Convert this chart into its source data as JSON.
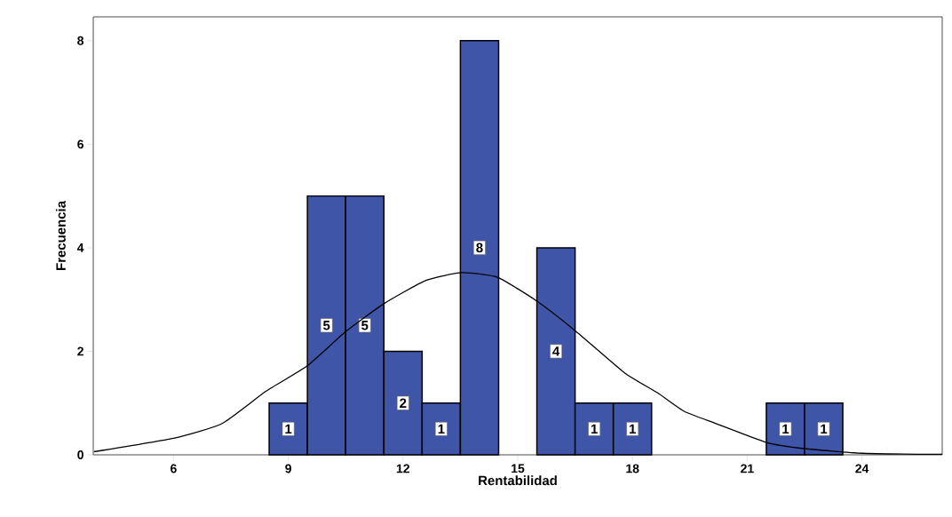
{
  "chart_data": {
    "type": "histogram",
    "xlabel": "Rentabilidad",
    "ylabel": "Frecuencia",
    "bins": [
      8.5,
      9.5,
      10.5,
      11.5,
      12.5,
      13.5,
      14.5,
      15.5,
      16.5,
      17.5,
      18.5,
      19.5,
      20.5,
      21.5,
      22.5,
      23.5
    ],
    "values": [
      1,
      5,
      5,
      2,
      1,
      8,
      0,
      4,
      1,
      1,
      0,
      0,
      0,
      1,
      1
    ],
    "value_labels": [
      "1",
      "5",
      "5",
      "2",
      "1",
      "8",
      null,
      "4",
      "1",
      "1",
      null,
      null,
      null,
      "1",
      "1"
    ],
    "color": "#3f56a8",
    "xlim": [
      3.9,
      26.1
    ],
    "ylim": [
      0,
      8.46
    ],
    "xticks": [
      6,
      9,
      12,
      15,
      18,
      21,
      24
    ],
    "yticks": [
      0,
      2,
      4,
      6,
      8
    ],
    "series": [
      {
        "type": "line",
        "color": "#000000",
        "x": [
          3.92,
          6,
          7.26,
          8.42,
          9.5,
          10.5,
          11.5,
          12.6,
          13.53,
          14.47,
          15.5,
          16.5,
          17.8,
          18.65,
          19.35,
          20.2,
          21.5,
          22.5,
          24,
          25.6,
          26.1
        ],
        "values": [
          0.06,
          0.32,
          0.6,
          1.23,
          1.72,
          2.38,
          2.92,
          3.37,
          3.52,
          3.43,
          2.97,
          2.4,
          1.58,
          1.2,
          0.84,
          0.6,
          0.24,
          0.12,
          0.03,
          0.01,
          0.01
        ]
      }
    ]
  }
}
